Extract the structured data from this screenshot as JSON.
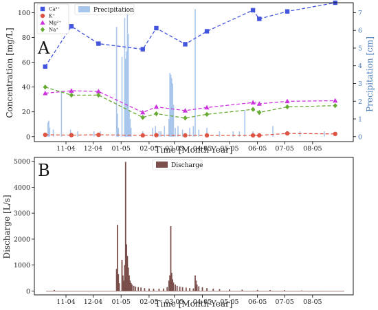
{
  "chart_data": [
    {
      "type": "line",
      "panel_label": "A",
      "xlabel": "Time [Month-Year]",
      "ylabel": "Concentration [mg/L]",
      "y2label": "Precipitation [cm]",
      "ylim": [
        -4,
        108
      ],
      "y2lim": [
        -0.28,
        7.56
      ],
      "yticks": [
        0,
        20,
        40,
        60,
        80,
        100
      ],
      "y2ticks": [
        0,
        1,
        2,
        3,
        4,
        5,
        6,
        7
      ],
      "xlim": [
        "2004-09-27",
        "2005-09-15"
      ],
      "xticks": [
        {
          "date": "2004-11-01",
          "label": "11-04"
        },
        {
          "date": "2004-12-01",
          "label": "12-04"
        },
        {
          "date": "2005-01-01",
          "label": "01-05"
        },
        {
          "date": "2005-02-01",
          "label": "02-05"
        },
        {
          "date": "2005-03-01",
          "label": "03-05"
        },
        {
          "date": "2005-04-01",
          "label": "04-05"
        },
        {
          "date": "2005-05-01",
          "label": "05-05"
        },
        {
          "date": "2005-06-01",
          "label": "06-05"
        },
        {
          "date": "2005-07-01",
          "label": "07-05"
        },
        {
          "date": "2005-08-01",
          "label": "08-05"
        }
      ],
      "grid": false,
      "legend_placement": "upper-left",
      "series": [
        {
          "name": "Ca²⁺",
          "color": "#4455dd",
          "marker": "square",
          "x": [
            "2004-10-09",
            "2004-11-07",
            "2004-12-07",
            "2005-01-25",
            "2005-02-09",
            "2005-03-13",
            "2005-04-06",
            "2005-05-27",
            "2005-06-03",
            "2005-07-04",
            "2005-08-26"
          ],
          "values": [
            56.5,
            89,
            75,
            70.5,
            87.5,
            74.5,
            85,
            102,
            95,
            101,
            108
          ]
        },
        {
          "name": "K⁺",
          "color": "#dd5544",
          "marker": "circle",
          "x": [
            "2004-10-09",
            "2004-11-07",
            "2004-12-07",
            "2005-01-25",
            "2005-02-09",
            "2005-03-13",
            "2005-04-06",
            "2005-05-27",
            "2005-06-03",
            "2005-07-04",
            "2005-08-26"
          ],
          "values": [
            1.5,
            1.2,
            1.5,
            1.0,
            1.2,
            1.0,
            1.0,
            1.0,
            1.0,
            2.6,
            2.2
          ]
        },
        {
          "name": "Mg²⁺",
          "color": "#cc33dd",
          "marker": "triangle",
          "x": [
            "2004-10-09",
            "2004-11-07",
            "2004-12-07",
            "2005-01-25",
            "2005-02-09",
            "2005-03-13",
            "2005-04-06",
            "2005-05-27",
            "2005-06-03",
            "2005-07-04",
            "2005-08-26"
          ],
          "values": [
            35,
            37,
            36.5,
            19.5,
            24,
            21,
            23.5,
            27.5,
            26.5,
            28.5,
            29
          ]
        },
        {
          "name": "Na⁺",
          "color": "#66aa33",
          "marker": "diamond",
          "x": [
            "2004-10-09",
            "2004-11-07",
            "2004-12-07",
            "2005-01-25",
            "2005-02-09",
            "2005-03-13",
            "2005-04-06",
            "2005-05-27",
            "2005-06-03",
            "2005-07-04",
            "2005-08-26"
          ],
          "values": [
            40,
            33.5,
            33.5,
            15.5,
            18.5,
            15,
            18,
            22,
            19.5,
            24,
            25
          ]
        },
        {
          "name": "Precipitation",
          "type": "bar",
          "axis": "right",
          "color": "#a9c6ec",
          "x": [
            "2004-10-12",
            "2004-10-13",
            "2004-10-14",
            "2004-10-18",
            "2004-10-27",
            "2004-11-06",
            "2004-11-14",
            "2004-12-02",
            "2004-12-09",
            "2004-12-27",
            "2004-12-28",
            "2004-12-29",
            "2005-01-02",
            "2005-01-05",
            "2005-01-06",
            "2005-01-07",
            "2005-01-08",
            "2005-01-09",
            "2005-01-10",
            "2005-01-11",
            "2005-01-12",
            "2005-01-25",
            "2005-02-05",
            "2005-02-08",
            "2005-02-12",
            "2005-02-14",
            "2005-02-18",
            "2005-02-23",
            "2005-02-24",
            "2005-02-25",
            "2005-02-26",
            "2005-02-27",
            "2005-02-28",
            "2005-03-02",
            "2005-03-05",
            "2005-03-10",
            "2005-03-18",
            "2005-03-22",
            "2005-03-24",
            "2005-03-28",
            "2005-04-06",
            "2005-04-20",
            "2005-05-05",
            "2005-05-12",
            "2005-05-18",
            "2005-05-27",
            "2005-06-18",
            "2005-07-18",
            "2005-08-14"
          ],
          "values": [
            0.8,
            0.9,
            0.5,
            0.4,
            2.6,
            0.4,
            0.3,
            0.3,
            0.3,
            6.2,
            1.3,
            0.5,
            4.5,
            6.7,
            4.4,
            4.8,
            7.1,
            5.8,
            1.5,
            1.0,
            0.5,
            0.3,
            0.5,
            0.6,
            0.3,
            0.3,
            0.6,
            1.0,
            3.6,
            3.5,
            3.3,
            3.0,
            1.8,
            0.5,
            0.6,
            0.4,
            0.5,
            0.6,
            7.2,
            0.4,
            0.5,
            0.3,
            0.3,
            0.3,
            1.5,
            0.3,
            0.6,
            0.3,
            0.3
          ]
        }
      ]
    },
    {
      "type": "bar",
      "panel_label": "B",
      "xlabel": "Time [Month-Year]",
      "ylabel": "Discharge [L/s]",
      "ylim": [
        -150,
        5150
      ],
      "yticks": [
        0,
        1000,
        2000,
        3000,
        4000,
        5000
      ],
      "xlim": [
        "2004-09-27",
        "2005-09-15"
      ],
      "xticks": [
        {
          "date": "2004-11-01",
          "label": "11-04"
        },
        {
          "date": "2004-12-01",
          "label": "12-04"
        },
        {
          "date": "2005-01-01",
          "label": "01-05"
        },
        {
          "date": "2005-02-01",
          "label": "02-05"
        },
        {
          "date": "2005-03-01",
          "label": "03-05"
        },
        {
          "date": "2005-04-01",
          "label": "04-05"
        },
        {
          "date": "2005-05-01",
          "label": "05-05"
        },
        {
          "date": "2005-06-01",
          "label": "06-05"
        },
        {
          "date": "2005-07-01",
          "label": "07-05"
        },
        {
          "date": "2005-08-01",
          "label": "08-05"
        }
      ],
      "grid": false,
      "legend_placement": "top-center",
      "series": [
        {
          "name": "Discharge",
          "color": "#7b4f4b",
          "x": [
            "2004-10-19",
            "2004-12-20",
            "2004-12-27",
            "2004-12-28",
            "2004-12-29",
            "2004-12-30",
            "2005-01-02",
            "2005-01-03",
            "2005-01-04",
            "2005-01-05",
            "2005-01-06",
            "2005-01-07",
            "2005-01-08",
            "2005-01-09",
            "2005-01-10",
            "2005-01-11",
            "2005-01-12",
            "2005-01-13",
            "2005-01-15",
            "2005-01-17",
            "2005-01-20",
            "2005-01-23",
            "2005-01-27",
            "2005-02-01",
            "2005-02-06",
            "2005-02-12",
            "2005-02-17",
            "2005-02-21",
            "2005-02-23",
            "2005-02-24",
            "2005-02-25",
            "2005-02-26",
            "2005-02-27",
            "2005-02-28",
            "2005-03-02",
            "2005-03-04",
            "2005-03-07",
            "2005-03-10",
            "2005-03-14",
            "2005-03-18",
            "2005-03-22",
            "2005-03-24",
            "2005-03-25",
            "2005-03-26",
            "2005-03-28",
            "2005-04-01",
            "2005-04-06",
            "2005-04-13",
            "2005-04-20",
            "2005-05-01",
            "2005-05-15",
            "2005-06-01",
            "2005-06-15",
            "2005-07-01",
            "2005-07-20",
            "2005-08-10"
          ],
          "values": [
            40,
            10,
            850,
            2550,
            650,
            300,
            1200,
            600,
            400,
            1000,
            4980,
            1800,
            1350,
            900,
            600,
            400,
            300,
            250,
            200,
            170,
            150,
            130,
            110,
            95,
            90,
            90,
            95,
            150,
            400,
            600,
            2500,
            700,
            450,
            330,
            250,
            200,
            170,
            150,
            130,
            110,
            100,
            600,
            400,
            250,
            180,
            140,
            110,
            90,
            75,
            60,
            50,
            40,
            35,
            30,
            20,
            10
          ]
        }
      ]
    }
  ]
}
